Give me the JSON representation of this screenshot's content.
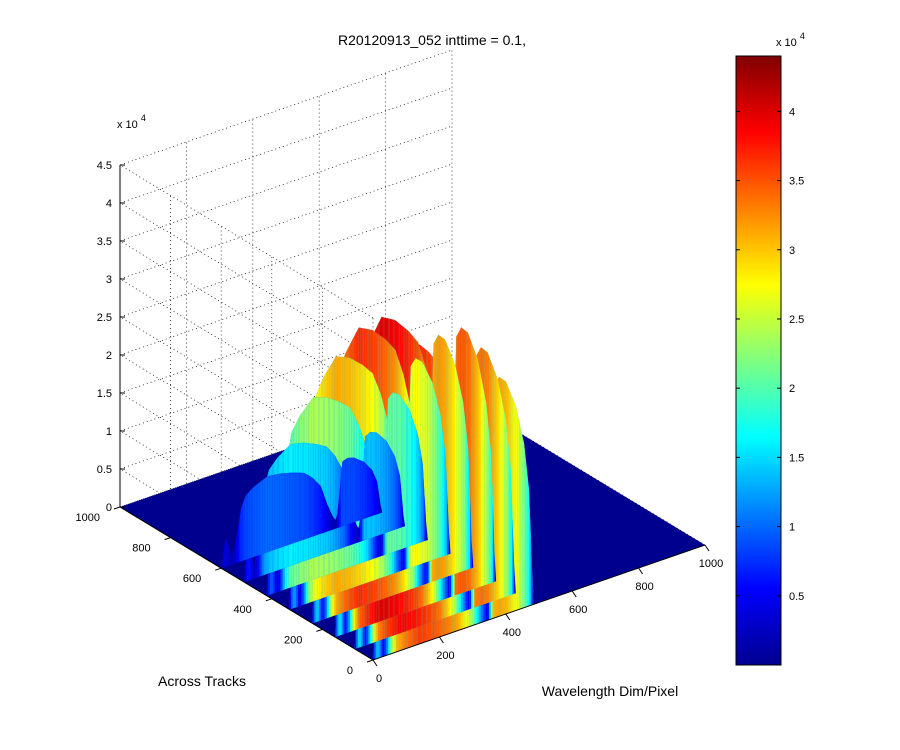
{
  "figure": {
    "title": "R20120913_052 inttime = 0.1,"
  },
  "colors": {
    "background": "#ffffff",
    "axis": "#000000",
    "grid": "#000000",
    "colormap": "jet",
    "floor": "#00008f"
  },
  "chart_data": {
    "type": "surface3d",
    "title": "R20120913_052 inttime = 0.1,",
    "xlabel": "Wavelength Dim/Pixel",
    "ylabel": "Across Tracks",
    "zlabel": "",
    "z_multiplier_label": "x 10",
    "z_multiplier_exp": "4",
    "xlim": [
      0,
      1000
    ],
    "ylim": [
      0,
      1000
    ],
    "zlim": [
      0,
      45000
    ],
    "x_ticks": [
      "0",
      "200",
      "400",
      "600",
      "800",
      "1000"
    ],
    "x_tick_values": [
      0,
      200,
      400,
      600,
      800,
      1000
    ],
    "y_ticks": [
      "0",
      "200",
      "400",
      "600",
      "800",
      "1000"
    ],
    "y_tick_values": [
      0,
      200,
      400,
      600,
      800,
      1000
    ],
    "z_ticks": [
      "0",
      "0.5",
      "1",
      "1.5",
      "2",
      "2.5",
      "3",
      "3.5",
      "4",
      "4.5"
    ],
    "z_tick_values": [
      0,
      5000,
      10000,
      15000,
      20000,
      25000,
      30000,
      35000,
      40000,
      45000
    ],
    "grid": true,
    "data_extent": {
      "x": [
        0,
        1000
      ],
      "y": [
        0,
        600
      ]
    },
    "profile": {
      "wavelength": [
        0,
        8,
        15,
        22,
        30,
        45,
        60,
        75,
        100,
        140,
        180,
        220,
        250,
        275,
        300,
        320,
        338,
        348,
        355,
        365,
        380,
        400,
        430,
        455,
        470,
        480,
        485
      ],
      "peak_value": [
        0,
        10000,
        15000,
        10000,
        3000,
        12000,
        28000,
        34000,
        37000,
        40000,
        39000,
        37000,
        35000,
        31000,
        25000,
        14000,
        6000,
        4000,
        16000,
        34000,
        35000,
        34000,
        30000,
        24000,
        17000,
        4000,
        0
      ]
    },
    "colorbar": {
      "ticks": [
        "0.5",
        "1",
        "1.5",
        "2",
        "2.5",
        "3",
        "3.5",
        "4"
      ],
      "tick_values": [
        5000,
        10000,
        15000,
        20000,
        25000,
        30000,
        35000,
        40000
      ],
      "multiplier_label": "x 10",
      "multiplier_exp": "4",
      "range": [
        0,
        44000
      ]
    }
  }
}
